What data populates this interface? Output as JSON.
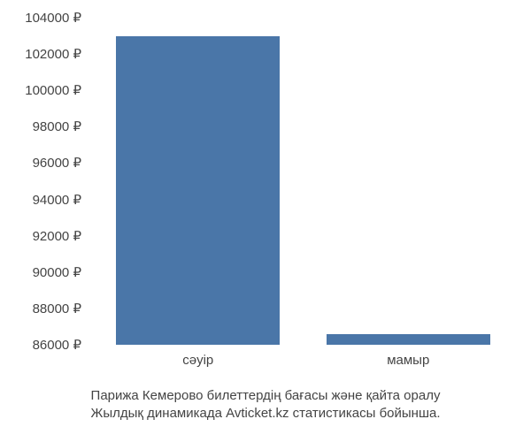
{
  "chart": {
    "type": "bar",
    "background_color": "#ffffff",
    "y_axis": {
      "min": 86000,
      "max": 104000,
      "tick_step": 2000,
      "ticks": [
        86000,
        88000,
        90000,
        92000,
        94000,
        96000,
        98000,
        100000,
        102000,
        104000
      ],
      "currency_suffix": " ₽",
      "label_color": "#444444",
      "label_fontsize": 15
    },
    "x_axis": {
      "categories": [
        "сәуір",
        "мамыр"
      ],
      "label_color": "#444444",
      "label_fontsize": 15
    },
    "series": {
      "values": [
        103000,
        86600
      ],
      "bar_color": "#4a76a8",
      "bar_width_frac": 0.78
    },
    "caption": {
      "line1": "Парижа Кемерово билеттердің бағасы және қайта оралу",
      "line2": "Жылдық динамикада Avticket.kz статистикасы бойынша.",
      "color": "#444444",
      "fontsize": 15
    }
  }
}
